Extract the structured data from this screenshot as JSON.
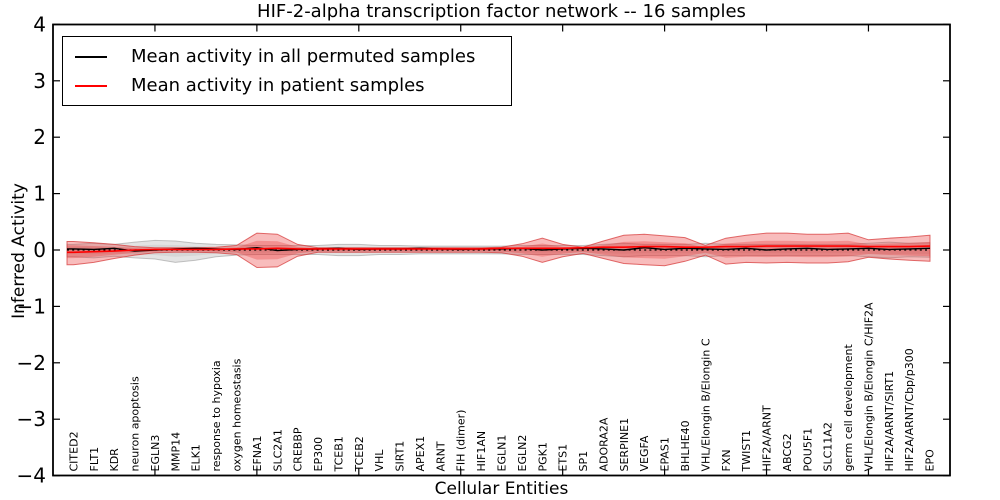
{
  "figure": {
    "background": "#ffffff",
    "frame_color": "#000000"
  },
  "legend": {
    "position": "upper left",
    "entries": [
      {
        "label": "Mean activity in all permuted samples",
        "color": "#000000"
      },
      {
        "label": "Mean activity in patient samples",
        "color": "#ff0000"
      }
    ]
  },
  "chart_data": {
    "type": "line",
    "title": "HIF-2-alpha transcription factor network -- 16 samples",
    "xlabel": "Cellular Entities",
    "ylabel": "Inferred Activity",
    "ylim": [
      -4,
      4
    ],
    "yticks": [
      4,
      3,
      2,
      1,
      0,
      -1,
      -2,
      -3,
      -4
    ],
    "ytick_labels": [
      "4",
      "3",
      "2",
      "1",
      "0",
      "−1",
      "−2",
      "−3",
      "−4"
    ],
    "xtick_values": [
      5,
      10,
      15,
      20,
      25,
      30,
      35,
      40
    ],
    "grid": false,
    "legend_position": "upper left",
    "categories": [
      "CITED2",
      "FLT1",
      "KDR",
      "neuron apoptosis",
      "EGLN3",
      "MMP14",
      "ELK1",
      "response to hypoxia",
      "oxygen homeostasis",
      "EFNA1",
      "SLC2A1",
      "CREBBP",
      "EP300",
      "TCEB1",
      "TCEB2",
      "VHL",
      "SIRT1",
      "APEX1",
      "ARNT",
      "FIH (dimer)",
      "HIF1AN",
      "EGLN1",
      "EGLN2",
      "PGK1",
      "ETS1",
      "SP1",
      "ADORA2A",
      "SERPINE1",
      "VEGFA",
      "EPAS1",
      "BHLHE40",
      "VHL/Elongin B/Elongin C",
      "FXN",
      "TWIST1",
      "HIF2A/ARNT",
      "ABCG2",
      "POU5F1",
      "SLC11A2",
      "germ cell development",
      "VHL/Elongin B/Elongin C/HIF2A",
      "HIF2A/ARNT/SIRT1",
      "HIF2A/ARNT/Cbp/p300",
      "EPO"
    ],
    "series": [
      {
        "name": "Mean activity in all permuted samples",
        "color": "#000000",
        "style": "solid",
        "values": [
          0.02,
          0.01,
          0.03,
          -0.02,
          0.0,
          0.02,
          0.03,
          0.02,
          0.01,
          0.04,
          -0.01,
          0.01,
          0.02,
          0.03,
          0.01,
          0.02,
          0.02,
          0.03,
          0.02,
          0.01,
          0.02,
          0.02,
          0.03,
          0.0,
          0.02,
          0.03,
          0.02,
          0.0,
          0.04,
          0.01,
          0.03,
          0.02,
          0.01,
          0.03,
          0.0,
          0.02,
          0.03,
          0.01,
          0.02,
          0.03,
          0.01,
          0.02,
          0.03
        ]
      },
      {
        "name": "Mean activity in patient samples",
        "color": "#ff0000",
        "style": "solid",
        "values": [
          -0.04,
          -0.03,
          -0.02,
          0.0,
          0.01,
          0.01,
          0.01,
          0.01,
          0.02,
          0.02,
          0.03,
          0.02,
          0.02,
          0.02,
          0.02,
          0.02,
          0.02,
          0.02,
          0.02,
          0.02,
          0.02,
          0.03,
          0.03,
          0.03,
          0.03,
          0.04,
          0.05,
          0.05,
          0.06,
          0.06,
          0.05,
          0.05,
          0.06,
          0.06,
          0.07,
          0.07,
          0.07,
          0.07,
          0.07,
          0.06,
          0.06,
          0.06,
          0.07
        ]
      }
    ],
    "bands": [
      {
        "name": "permuted-samples-range",
        "color": "#999999",
        "upper": [
          0.1,
          0.12,
          0.1,
          0.14,
          0.17,
          0.16,
          0.12,
          0.1,
          0.09,
          0.08,
          0.08,
          0.08,
          0.08,
          0.1,
          0.1,
          0.08,
          0.08,
          0.07,
          0.07,
          0.07,
          0.07,
          0.07,
          0.08,
          0.08,
          0.08,
          0.08,
          0.1,
          0.12,
          0.1,
          0.1,
          0.1,
          0.12,
          0.1,
          0.1,
          0.1,
          0.1,
          0.1,
          0.1,
          0.1,
          0.12,
          0.14,
          0.12,
          0.13
        ],
        "lower": [
          -0.12,
          -0.14,
          -0.11,
          -0.14,
          -0.16,
          -0.22,
          -0.18,
          -0.12,
          -0.09,
          -0.08,
          -0.08,
          -0.08,
          -0.08,
          -0.1,
          -0.1,
          -0.08,
          -0.08,
          -0.07,
          -0.07,
          -0.07,
          -0.07,
          -0.07,
          -0.08,
          -0.08,
          -0.08,
          -0.08,
          -0.1,
          -0.12,
          -0.1,
          -0.1,
          -0.1,
          -0.12,
          -0.1,
          -0.1,
          -0.1,
          -0.1,
          -0.1,
          -0.1,
          -0.1,
          -0.12,
          -0.14,
          -0.12,
          -0.13
        ]
      },
      {
        "name": "patient-samples-range",
        "color": "#e83030",
        "upper": [
          0.15,
          0.13,
          0.1,
          0.06,
          0.04,
          0.04,
          0.04,
          0.05,
          0.08,
          0.3,
          0.28,
          0.1,
          0.04,
          0.04,
          0.04,
          0.04,
          0.04,
          0.04,
          0.04,
          0.04,
          0.04,
          0.05,
          0.11,
          0.21,
          0.1,
          0.05,
          0.16,
          0.26,
          0.28,
          0.25,
          0.22,
          0.08,
          0.21,
          0.26,
          0.3,
          0.3,
          0.28,
          0.28,
          0.3,
          0.18,
          0.21,
          0.23,
          0.26
        ],
        "lower": [
          -0.26,
          -0.22,
          -0.15,
          -0.09,
          -0.05,
          -0.04,
          -0.04,
          -0.05,
          -0.08,
          -0.31,
          -0.3,
          -0.11,
          -0.04,
          -0.04,
          -0.04,
          -0.04,
          -0.04,
          -0.04,
          -0.04,
          -0.04,
          -0.04,
          -0.05,
          -0.11,
          -0.22,
          -0.12,
          -0.06,
          -0.15,
          -0.24,
          -0.26,
          -0.28,
          -0.2,
          -0.09,
          -0.25,
          -0.22,
          -0.23,
          -0.22,
          -0.23,
          -0.23,
          -0.21,
          -0.13,
          -0.16,
          -0.18,
          -0.2
        ]
      }
    ],
    "zero_line": {
      "y": 0,
      "style": "dotted",
      "color": "#000000"
    }
  }
}
